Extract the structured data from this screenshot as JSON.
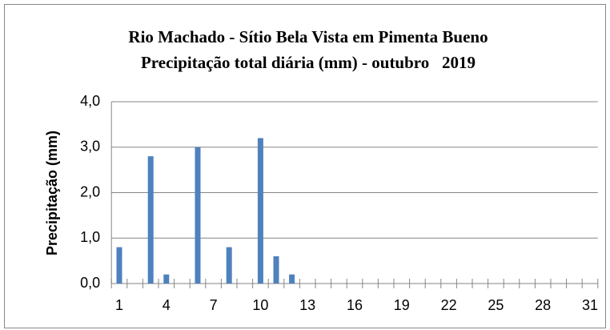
{
  "chart_data": {
    "type": "bar",
    "title": "Rio Machado - Sítio Bela Vista em Pimenta Bueno",
    "subtitle": "Precipitação total diária (mm) - outubro   2019",
    "y_label": "Precipitação (mm)",
    "categories": [
      1,
      null,
      null,
      4,
      null,
      null,
      7,
      null,
      null,
      10,
      null,
      null,
      13,
      null,
      null,
      16,
      null,
      null,
      19,
      null,
      null,
      22,
      null,
      null,
      25,
      null,
      null,
      28,
      null,
      null,
      31
    ],
    "values": [
      0.8,
      0,
      2.8,
      0.2,
      0,
      3.0,
      0,
      0.8,
      0,
      3.2,
      0.6,
      0.2,
      0,
      0,
      0,
      0,
      0,
      0,
      0,
      0,
      0,
      0,
      0,
      0,
      0,
      0,
      0,
      0,
      0,
      0,
      0
    ],
    "color": "#4f81bd",
    "ylim": [
      0,
      4
    ],
    "yticks": [
      {
        "value": 0,
        "label": "0,0"
      },
      {
        "value": 1,
        "label": "1,0"
      },
      {
        "value": 2,
        "label": "2,0"
      },
      {
        "value": 3,
        "label": "3,0"
      },
      {
        "value": 4,
        "label": "4,0"
      }
    ],
    "grid": true
  }
}
